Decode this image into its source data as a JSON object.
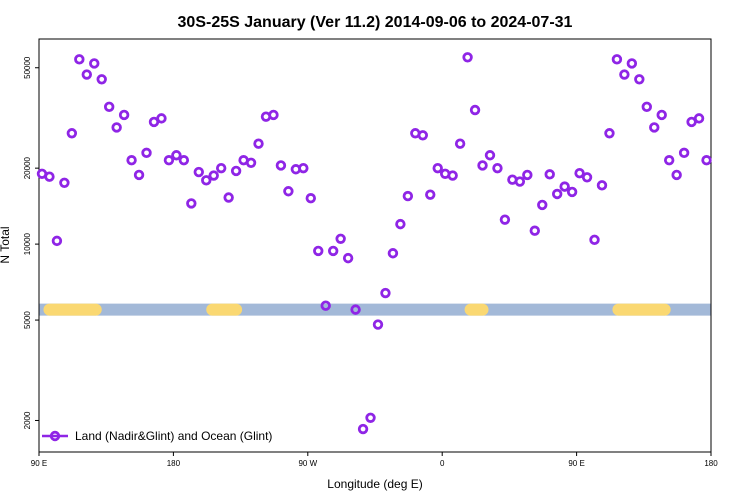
{
  "chart_data": {
    "type": "scatter",
    "title": "30S-25S January (Ver 11.2)   2014-09-06 to 2024-07-31",
    "xlabel": "Longitude (deg E)",
    "ylabel": "N Total",
    "x_ticks": [
      "90 E",
      "180",
      "90 W",
      "0",
      "90 E",
      "180"
    ],
    "y_scale": "log",
    "y_ticks": [
      2000,
      5000,
      10000,
      20000,
      50000
    ],
    "ylim": [
      1500,
      65000
    ],
    "xlim": [
      -270,
      180
    ],
    "grid": false,
    "legend_position": "bottom-left",
    "land_mask": {
      "ocean_color": "#a3b9d8",
      "land_color": "#fad872",
      "land_ranges": [
        [
          -267,
          -228
        ],
        [
          -158,
          -134
        ],
        [
          15,
          31
        ],
        [
          114,
          153
        ]
      ]
    },
    "series": [
      {
        "name": "Land (Nadir&Glint) and Ocean (Glint)",
        "color": "#8f25e6",
        "x": [
          -268,
          -263,
          -258,
          -253,
          -248,
          -243,
          -238,
          -233,
          -228,
          -223,
          -218,
          -213,
          -208,
          -203,
          -198,
          -193,
          -188,
          -183,
          -178,
          -173,
          -168,
          -163,
          -158,
          -153,
          -148,
          -143,
          -138,
          -133,
          -128,
          -123,
          -118,
          -113,
          -108,
          -103,
          -98,
          -93,
          -88,
          -83,
          -78,
          -73,
          -68,
          -63,
          -58,
          -53,
          -48,
          -43,
          -38,
          -33,
          -28,
          -23,
          -18,
          -13,
          -8,
          -3,
          2,
          7,
          12,
          17,
          22,
          27,
          32,
          37,
          42,
          47,
          52,
          57,
          62,
          67,
          72,
          77,
          82,
          87,
          92,
          97,
          102,
          107,
          112,
          117,
          122,
          127,
          132,
          137,
          142,
          147,
          152,
          157,
          162,
          167,
          172,
          177
        ],
        "y": [
          19000,
          18500,
          10300,
          17500,
          27500,
          54000,
          47000,
          52000,
          45000,
          35000,
          29000,
          32500,
          21500,
          18800,
          23000,
          30500,
          31500,
          21500,
          22500,
          21500,
          14500,
          19300,
          17900,
          18700,
          20000,
          15300,
          19500,
          21500,
          21000,
          25000,
          32000,
          32500,
          20500,
          16200,
          19800,
          20000,
          15200,
          9400,
          5700,
          9400,
          10500,
          8800,
          5500,
          1850,
          2050,
          4800,
          6400,
          9200,
          12000,
          15500,
          27500,
          27000,
          15700,
          20000,
          19000,
          18700,
          25000,
          55000,
          34000,
          20500,
          22500,
          20000,
          12500,
          18000,
          17700,
          18800,
          11300,
          14300,
          18900,
          15800,
          16900,
          16100,
          19100,
          18400,
          10400,
          17100,
          27500,
          54000,
          47000,
          52000,
          45000,
          35000,
          29000,
          32500,
          21500,
          18800,
          23000,
          30500,
          31500,
          21500
        ]
      }
    ]
  }
}
